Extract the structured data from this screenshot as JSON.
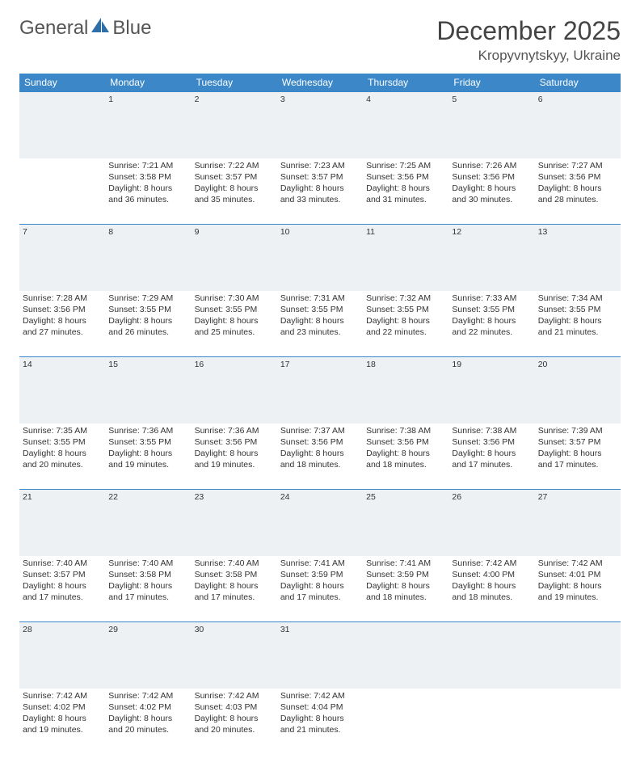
{
  "brand": {
    "name1": "General",
    "name2": "Blue"
  },
  "title": "December 2025",
  "location": "Kropyvnytskyy, Ukraine",
  "colors": {
    "header_bg": "#3b87c8",
    "header_text": "#ffffff",
    "daynum_bg": "#eef1f3",
    "daynum_border": "#3b87c8",
    "text": "#333333",
    "brand_text": "#555555",
    "brand_accent": "#2f6fa8"
  },
  "weekdays": [
    "Sunday",
    "Monday",
    "Tuesday",
    "Wednesday",
    "Thursday",
    "Friday",
    "Saturday"
  ],
  "weeks": [
    {
      "nums": [
        "",
        "1",
        "2",
        "3",
        "4",
        "5",
        "6"
      ],
      "cells": [
        null,
        {
          "sunrise": "Sunrise: 7:21 AM",
          "sunset": "Sunset: 3:58 PM",
          "day1": "Daylight: 8 hours",
          "day2": "and 36 minutes."
        },
        {
          "sunrise": "Sunrise: 7:22 AM",
          "sunset": "Sunset: 3:57 PM",
          "day1": "Daylight: 8 hours",
          "day2": "and 35 minutes."
        },
        {
          "sunrise": "Sunrise: 7:23 AM",
          "sunset": "Sunset: 3:57 PM",
          "day1": "Daylight: 8 hours",
          "day2": "and 33 minutes."
        },
        {
          "sunrise": "Sunrise: 7:25 AM",
          "sunset": "Sunset: 3:56 PM",
          "day1": "Daylight: 8 hours",
          "day2": "and 31 minutes."
        },
        {
          "sunrise": "Sunrise: 7:26 AM",
          "sunset": "Sunset: 3:56 PM",
          "day1": "Daylight: 8 hours",
          "day2": "and 30 minutes."
        },
        {
          "sunrise": "Sunrise: 7:27 AM",
          "sunset": "Sunset: 3:56 PM",
          "day1": "Daylight: 8 hours",
          "day2": "and 28 minutes."
        }
      ]
    },
    {
      "nums": [
        "7",
        "8",
        "9",
        "10",
        "11",
        "12",
        "13"
      ],
      "cells": [
        {
          "sunrise": "Sunrise: 7:28 AM",
          "sunset": "Sunset: 3:56 PM",
          "day1": "Daylight: 8 hours",
          "day2": "and 27 minutes."
        },
        {
          "sunrise": "Sunrise: 7:29 AM",
          "sunset": "Sunset: 3:55 PM",
          "day1": "Daylight: 8 hours",
          "day2": "and 26 minutes."
        },
        {
          "sunrise": "Sunrise: 7:30 AM",
          "sunset": "Sunset: 3:55 PM",
          "day1": "Daylight: 8 hours",
          "day2": "and 25 minutes."
        },
        {
          "sunrise": "Sunrise: 7:31 AM",
          "sunset": "Sunset: 3:55 PM",
          "day1": "Daylight: 8 hours",
          "day2": "and 23 minutes."
        },
        {
          "sunrise": "Sunrise: 7:32 AM",
          "sunset": "Sunset: 3:55 PM",
          "day1": "Daylight: 8 hours",
          "day2": "and 22 minutes."
        },
        {
          "sunrise": "Sunrise: 7:33 AM",
          "sunset": "Sunset: 3:55 PM",
          "day1": "Daylight: 8 hours",
          "day2": "and 22 minutes."
        },
        {
          "sunrise": "Sunrise: 7:34 AM",
          "sunset": "Sunset: 3:55 PM",
          "day1": "Daylight: 8 hours",
          "day2": "and 21 minutes."
        }
      ]
    },
    {
      "nums": [
        "14",
        "15",
        "16",
        "17",
        "18",
        "19",
        "20"
      ],
      "cells": [
        {
          "sunrise": "Sunrise: 7:35 AM",
          "sunset": "Sunset: 3:55 PM",
          "day1": "Daylight: 8 hours",
          "day2": "and 20 minutes."
        },
        {
          "sunrise": "Sunrise: 7:36 AM",
          "sunset": "Sunset: 3:55 PM",
          "day1": "Daylight: 8 hours",
          "day2": "and 19 minutes."
        },
        {
          "sunrise": "Sunrise: 7:36 AM",
          "sunset": "Sunset: 3:56 PM",
          "day1": "Daylight: 8 hours",
          "day2": "and 19 minutes."
        },
        {
          "sunrise": "Sunrise: 7:37 AM",
          "sunset": "Sunset: 3:56 PM",
          "day1": "Daylight: 8 hours",
          "day2": "and 18 minutes."
        },
        {
          "sunrise": "Sunrise: 7:38 AM",
          "sunset": "Sunset: 3:56 PM",
          "day1": "Daylight: 8 hours",
          "day2": "and 18 minutes."
        },
        {
          "sunrise": "Sunrise: 7:38 AM",
          "sunset": "Sunset: 3:56 PM",
          "day1": "Daylight: 8 hours",
          "day2": "and 17 minutes."
        },
        {
          "sunrise": "Sunrise: 7:39 AM",
          "sunset": "Sunset: 3:57 PM",
          "day1": "Daylight: 8 hours",
          "day2": "and 17 minutes."
        }
      ]
    },
    {
      "nums": [
        "21",
        "22",
        "23",
        "24",
        "25",
        "26",
        "27"
      ],
      "cells": [
        {
          "sunrise": "Sunrise: 7:40 AM",
          "sunset": "Sunset: 3:57 PM",
          "day1": "Daylight: 8 hours",
          "day2": "and 17 minutes."
        },
        {
          "sunrise": "Sunrise: 7:40 AM",
          "sunset": "Sunset: 3:58 PM",
          "day1": "Daylight: 8 hours",
          "day2": "and 17 minutes."
        },
        {
          "sunrise": "Sunrise: 7:40 AM",
          "sunset": "Sunset: 3:58 PM",
          "day1": "Daylight: 8 hours",
          "day2": "and 17 minutes."
        },
        {
          "sunrise": "Sunrise: 7:41 AM",
          "sunset": "Sunset: 3:59 PM",
          "day1": "Daylight: 8 hours",
          "day2": "and 17 minutes."
        },
        {
          "sunrise": "Sunrise: 7:41 AM",
          "sunset": "Sunset: 3:59 PM",
          "day1": "Daylight: 8 hours",
          "day2": "and 18 minutes."
        },
        {
          "sunrise": "Sunrise: 7:42 AM",
          "sunset": "Sunset: 4:00 PM",
          "day1": "Daylight: 8 hours",
          "day2": "and 18 minutes."
        },
        {
          "sunrise": "Sunrise: 7:42 AM",
          "sunset": "Sunset: 4:01 PM",
          "day1": "Daylight: 8 hours",
          "day2": "and 19 minutes."
        }
      ]
    },
    {
      "nums": [
        "28",
        "29",
        "30",
        "31",
        "",
        "",
        ""
      ],
      "cells": [
        {
          "sunrise": "Sunrise: 7:42 AM",
          "sunset": "Sunset: 4:02 PM",
          "day1": "Daylight: 8 hours",
          "day2": "and 19 minutes."
        },
        {
          "sunrise": "Sunrise: 7:42 AM",
          "sunset": "Sunset: 4:02 PM",
          "day1": "Daylight: 8 hours",
          "day2": "and 20 minutes."
        },
        {
          "sunrise": "Sunrise: 7:42 AM",
          "sunset": "Sunset: 4:03 PM",
          "day1": "Daylight: 8 hours",
          "day2": "and 20 minutes."
        },
        {
          "sunrise": "Sunrise: 7:42 AM",
          "sunset": "Sunset: 4:04 PM",
          "day1": "Daylight: 8 hours",
          "day2": "and 21 minutes."
        },
        null,
        null,
        null
      ]
    }
  ]
}
